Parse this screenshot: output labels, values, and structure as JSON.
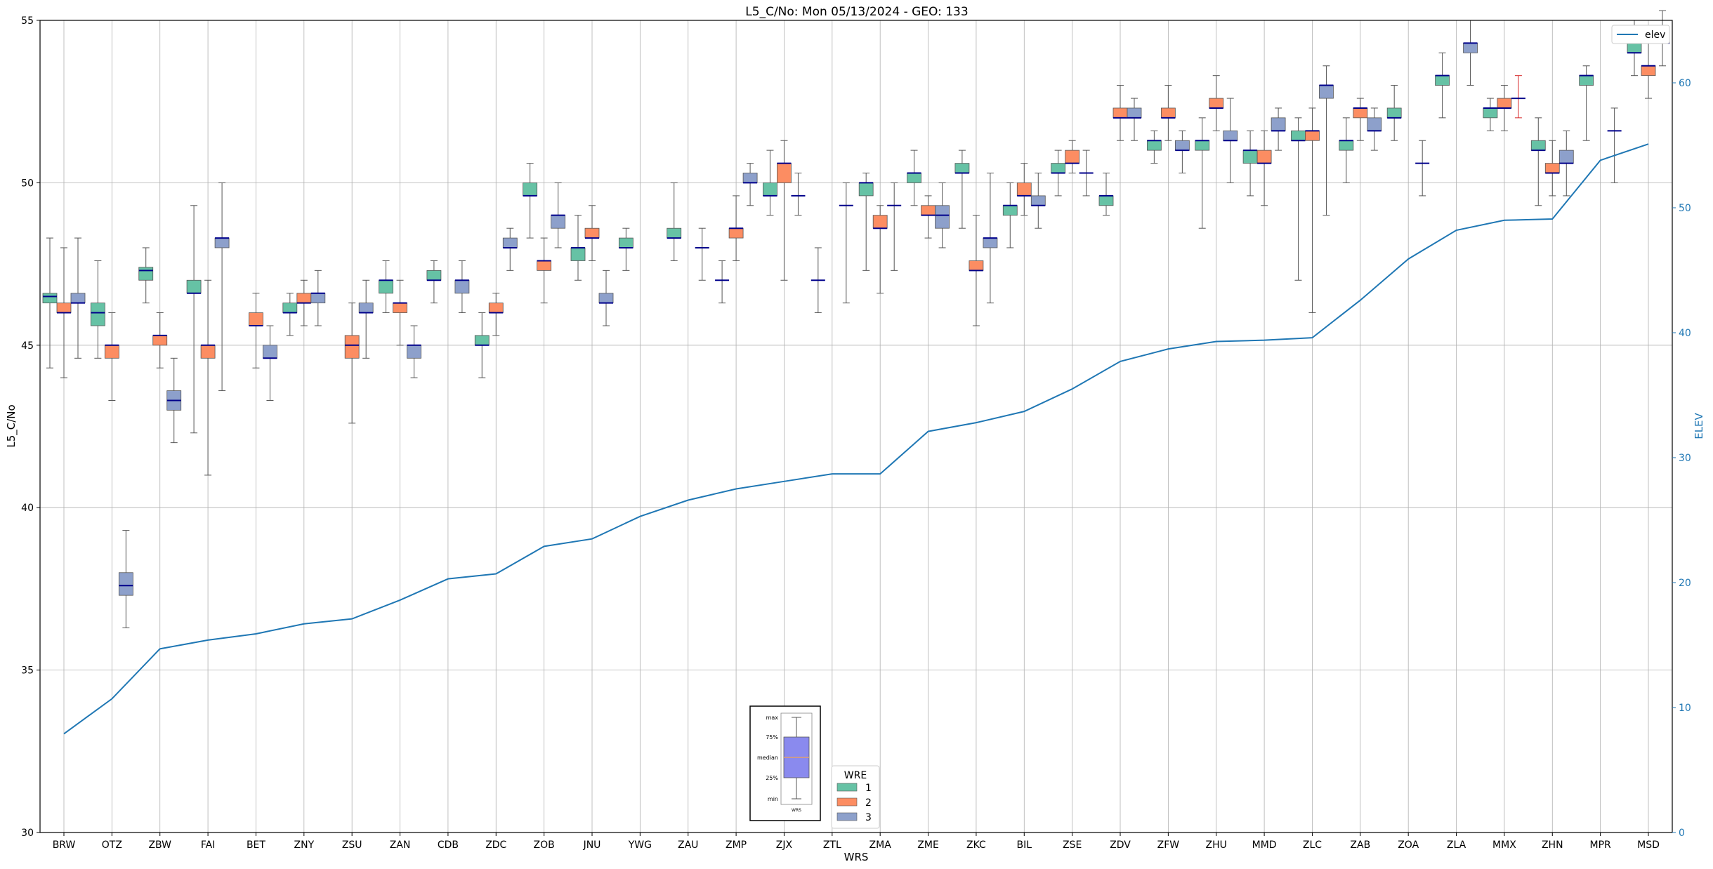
{
  "chart_data": {
    "type": "box",
    "title": "L5_C/No: Mon 05/13/2024 - GEO: 133",
    "xlabel": "WRS",
    "ylabel": "L5_C/No",
    "y2label": "ELEV",
    "ylim": [
      30,
      55
    ],
    "yticks": [
      30,
      35,
      40,
      45,
      50,
      55
    ],
    "y2lim": [
      0,
      65
    ],
    "y2ticks": [
      0,
      10,
      20,
      30,
      40,
      50,
      60
    ],
    "grid": true,
    "categories": [
      "BRW",
      "OTZ",
      "ZBW",
      "FAI",
      "BET",
      "ZNY",
      "ZSU",
      "ZAN",
      "CDB",
      "ZDC",
      "ZOB",
      "JNU",
      "YWG",
      "ZAU",
      "ZMP",
      "ZJX",
      "ZTL",
      "ZMA",
      "ZME",
      "ZKC",
      "BIL",
      "ZSE",
      "ZDV",
      "ZFW",
      "ZHU",
      "MMD",
      "ZLC",
      "ZAB",
      "ZOA",
      "ZLA",
      "MMX",
      "ZHN",
      "MPR",
      "MSD"
    ],
    "series": [
      {
        "name": "1",
        "color": "#66c2a5",
        "boxes": [
          {
            "wrs": "BRW",
            "min": 44.3,
            "q1": 46.3,
            "median": 46.5,
            "q3": 46.6,
            "max": 48.3
          },
          {
            "wrs": "OTZ",
            "min": 44.6,
            "q1": 45.6,
            "median": 46.0,
            "q3": 46.3,
            "max": 47.6
          },
          {
            "wrs": "ZBW",
            "min": 46.3,
            "q1": 47.0,
            "median": 47.3,
            "q3": 47.4,
            "max": 48.0
          },
          {
            "wrs": "FAI",
            "min": 42.3,
            "q1": 46.6,
            "median": 46.6,
            "q3": 47.0,
            "max": 49.3
          },
          {
            "wrs": "ZNY",
            "min": 45.3,
            "q1": 46.0,
            "median": 46.0,
            "q3": 46.3,
            "max": 46.6
          },
          {
            "wrs": "ZAN",
            "min": 46.0,
            "q1": 46.6,
            "median": 47.0,
            "q3": 47.0,
            "max": 47.6
          },
          {
            "wrs": "CDB",
            "min": 46.3,
            "q1": 47.0,
            "median": 47.0,
            "q3": 47.3,
            "max": 47.6
          },
          {
            "wrs": "ZDC",
            "min": 44.0,
            "q1": 45.0,
            "median": 45.0,
            "q3": 45.3,
            "max": 46.0
          },
          {
            "wrs": "ZOB",
            "min": 48.3,
            "q1": 49.6,
            "median": 49.6,
            "q3": 50.0,
            "max": 50.6
          },
          {
            "wrs": "JNU",
            "min": 47.0,
            "q1": 47.6,
            "median": 48.0,
            "q3": 48.0,
            "max": 49.0
          },
          {
            "wrs": "YWG",
            "min": 47.3,
            "q1": 48.0,
            "median": 48.0,
            "q3": 48.3,
            "max": 48.6
          },
          {
            "wrs": "ZAU",
            "min": 47.6,
            "q1": 48.3,
            "median": 48.3,
            "q3": 48.6,
            "max": 50.0
          },
          {
            "wrs": "ZMP",
            "min": 46.3,
            "q1": 47.0,
            "median": 47.0,
            "q3": 47.0,
            "max": 47.6
          },
          {
            "wrs": "ZJX",
            "min": 49.0,
            "q1": 49.6,
            "median": 49.6,
            "q3": 50.0,
            "max": 51.0
          },
          {
            "wrs": "ZTL",
            "min": 46.0,
            "q1": 47.0,
            "median": 47.0,
            "q3": 47.0,
            "max": 48.0
          },
          {
            "wrs": "ZMA",
            "min": 47.3,
            "q1": 49.6,
            "median": 50.0,
            "q3": 50.0,
            "max": 50.3
          },
          {
            "wrs": "ZME",
            "min": 49.3,
            "q1": 50.0,
            "median": 50.3,
            "q3": 50.3,
            "max": 51.0
          },
          {
            "wrs": "ZKC",
            "min": 48.6,
            "q1": 50.3,
            "median": 50.3,
            "q3": 50.6,
            "max": 51.0
          },
          {
            "wrs": "BIL",
            "min": 48.0,
            "q1": 49.0,
            "median": 49.3,
            "q3": 49.3,
            "max": 50.0
          },
          {
            "wrs": "ZSE",
            "min": 49.6,
            "q1": 50.3,
            "median": 50.3,
            "q3": 50.6,
            "max": 51.0
          },
          {
            "wrs": "ZDV",
            "min": 49.0,
            "q1": 49.3,
            "median": 49.6,
            "q3": 49.6,
            "max": 50.3
          },
          {
            "wrs": "ZFW",
            "min": 50.6,
            "q1": 51.0,
            "median": 51.3,
            "q3": 51.3,
            "max": 51.6
          },
          {
            "wrs": "ZHU",
            "min": 48.6,
            "q1": 51.0,
            "median": 51.3,
            "q3": 51.3,
            "max": 52.0
          },
          {
            "wrs": "MMD",
            "min": 49.6,
            "q1": 50.6,
            "median": 51.0,
            "q3": 51.0,
            "max": 51.6
          },
          {
            "wrs": "ZLC",
            "min": 47.0,
            "q1": 51.3,
            "median": 51.3,
            "q3": 51.6,
            "max": 52.0
          },
          {
            "wrs": "ZAB",
            "min": 50.0,
            "q1": 51.0,
            "median": 51.3,
            "q3": 51.3,
            "max": 52.0
          },
          {
            "wrs": "ZOA",
            "min": 51.3,
            "q1": 52.0,
            "median": 52.0,
            "q3": 52.3,
            "max": 53.0
          },
          {
            "wrs": "ZLA",
            "min": 52.0,
            "q1": 53.0,
            "median": 53.3,
            "q3": 53.3,
            "max": 54.0
          },
          {
            "wrs": "MMX",
            "min": 51.6,
            "q1": 52.0,
            "median": 52.3,
            "q3": 52.3,
            "max": 52.6
          },
          {
            "wrs": "ZHN",
            "min": 49.3,
            "q1": 51.0,
            "median": 51.0,
            "q3": 51.3,
            "max": 52.0
          },
          {
            "wrs": "MPR",
            "min": 51.3,
            "q1": 53.0,
            "median": 53.3,
            "q3": 53.3,
            "max": 53.6
          },
          {
            "wrs": "MSD",
            "min": 53.3,
            "q1": 54.0,
            "median": 54.0,
            "q3": 54.3,
            "max": 55.0
          }
        ]
      },
      {
        "name": "2",
        "color": "#fc8d62",
        "boxes": [
          {
            "wrs": "BRW",
            "min": 44.0,
            "q1": 46.0,
            "median": 46.0,
            "q3": 46.3,
            "max": 48.0
          },
          {
            "wrs": "OTZ",
            "min": 43.3,
            "q1": 44.6,
            "median": 45.0,
            "q3": 45.0,
            "max": 46.0
          },
          {
            "wrs": "ZBW",
            "min": 44.3,
            "q1": 45.0,
            "median": 45.3,
            "q3": 45.3,
            "max": 46.0
          },
          {
            "wrs": "FAI",
            "min": 41.0,
            "q1": 44.6,
            "median": 45.0,
            "q3": 45.0,
            "max": 47.0
          },
          {
            "wrs": "BET",
            "min": 44.3,
            "q1": 45.6,
            "median": 45.6,
            "q3": 46.0,
            "max": 46.6
          },
          {
            "wrs": "ZNY",
            "min": 45.6,
            "q1": 46.3,
            "median": 46.3,
            "q3": 46.6,
            "max": 47.0
          },
          {
            "wrs": "ZSU",
            "min": 42.6,
            "q1": 44.6,
            "median": 45.0,
            "q3": 45.3,
            "max": 46.3
          },
          {
            "wrs": "ZAN",
            "min": 45.0,
            "q1": 46.0,
            "median": 46.3,
            "q3": 46.3,
            "max": 47.0
          },
          {
            "wrs": "ZDC",
            "min": 45.3,
            "q1": 46.0,
            "median": 46.0,
            "q3": 46.3,
            "max": 46.6
          },
          {
            "wrs": "ZOB",
            "min": 46.3,
            "q1": 47.3,
            "median": 47.6,
            "q3": 47.6,
            "max": 48.3
          },
          {
            "wrs": "JNU",
            "min": 47.6,
            "q1": 48.3,
            "median": 48.3,
            "q3": 48.6,
            "max": 49.3
          },
          {
            "wrs": "ZMP",
            "min": 47.6,
            "q1": 48.3,
            "median": 48.6,
            "q3": 48.6,
            "max": 49.6
          },
          {
            "wrs": "ZJX",
            "min": 47.0,
            "q1": 50.0,
            "median": 50.6,
            "q3": 50.6,
            "max": 51.3
          },
          {
            "wrs": "ZMA",
            "min": 46.6,
            "q1": 48.6,
            "median": 48.6,
            "q3": 49.0,
            "max": 49.3
          },
          {
            "wrs": "ZME",
            "min": 48.3,
            "q1": 49.0,
            "median": 49.0,
            "q3": 49.3,
            "max": 49.6
          },
          {
            "wrs": "ZKC",
            "min": 45.6,
            "q1": 47.3,
            "median": 47.3,
            "q3": 47.6,
            "max": 49.0
          },
          {
            "wrs": "BIL",
            "min": 49.0,
            "q1": 49.6,
            "median": 49.6,
            "q3": 50.0,
            "max": 50.6
          },
          {
            "wrs": "ZSE",
            "min": 50.3,
            "q1": 50.6,
            "median": 50.6,
            "q3": 51.0,
            "max": 51.3
          },
          {
            "wrs": "ZDV",
            "min": 51.3,
            "q1": 52.0,
            "median": 52.0,
            "q3": 52.3,
            "max": 53.0
          },
          {
            "wrs": "ZFW",
            "min": 51.3,
            "q1": 52.0,
            "median": 52.0,
            "q3": 52.3,
            "max": 53.0
          },
          {
            "wrs": "ZHU",
            "min": 51.6,
            "q1": 52.3,
            "median": 52.3,
            "q3": 52.6,
            "max": 53.3
          },
          {
            "wrs": "MMD",
            "min": 49.3,
            "q1": 50.6,
            "median": 50.6,
            "q3": 51.0,
            "max": 51.6
          },
          {
            "wrs": "ZLC",
            "min": 46.0,
            "q1": 51.3,
            "median": 51.6,
            "q3": 51.6,
            "max": 52.3
          },
          {
            "wrs": "ZAB",
            "min": 51.3,
            "q1": 52.0,
            "median": 52.3,
            "q3": 52.3,
            "max": 52.6
          },
          {
            "wrs": "MMX",
            "min": 51.6,
            "q1": 52.3,
            "median": 52.3,
            "q3": 52.6,
            "max": 53.0
          },
          {
            "wrs": "ZHN",
            "min": 49.6,
            "q1": 50.3,
            "median": 50.3,
            "q3": 50.6,
            "max": 51.3
          },
          {
            "wrs": "MSD",
            "min": 52.6,
            "q1": 53.3,
            "median": 53.6,
            "q3": 53.6,
            "max": 54.3
          }
        ]
      },
      {
        "name": "3",
        "color": "#8da0cb",
        "boxes": [
          {
            "wrs": "BRW",
            "min": 44.6,
            "q1": 46.3,
            "median": 46.3,
            "q3": 46.6,
            "max": 48.3
          },
          {
            "wrs": "OTZ",
            "min": 36.3,
            "q1": 37.3,
            "median": 37.6,
            "q3": 38.0,
            "max": 39.3
          },
          {
            "wrs": "ZBW",
            "min": 42.0,
            "q1": 43.0,
            "median": 43.3,
            "q3": 43.6,
            "max": 44.6
          },
          {
            "wrs": "FAI",
            "min": 43.6,
            "q1": 48.0,
            "median": 48.3,
            "q3": 48.3,
            "max": 50.0
          },
          {
            "wrs": "BET",
            "min": 43.3,
            "q1": 44.6,
            "median": 44.6,
            "q3": 45.0,
            "max": 45.6
          },
          {
            "wrs": "ZNY",
            "min": 45.6,
            "q1": 46.3,
            "median": 46.6,
            "q3": 46.6,
            "max": 47.3
          },
          {
            "wrs": "ZSU",
            "min": 44.6,
            "q1": 46.0,
            "median": 46.0,
            "q3": 46.3,
            "max": 47.0
          },
          {
            "wrs": "ZAN",
            "min": 44.0,
            "q1": 44.6,
            "median": 45.0,
            "q3": 45.0,
            "max": 45.6
          },
          {
            "wrs": "CDB",
            "min": 46.0,
            "q1": 46.6,
            "median": 47.0,
            "q3": 47.0,
            "max": 47.6
          },
          {
            "wrs": "ZDC",
            "min": 47.3,
            "q1": 48.0,
            "median": 48.0,
            "q3": 48.3,
            "max": 48.6
          },
          {
            "wrs": "ZOB",
            "min": 48.0,
            "q1": 48.6,
            "median": 49.0,
            "q3": 49.0,
            "max": 50.0
          },
          {
            "wrs": "JNU",
            "min": 45.6,
            "q1": 46.3,
            "median": 46.3,
            "q3": 46.6,
            "max": 47.3
          },
          {
            "wrs": "ZAU",
            "min": 47.0,
            "q1": 48.0,
            "median": 48.0,
            "q3": 48.0,
            "max": 48.6
          },
          {
            "wrs": "ZMP",
            "min": 49.3,
            "q1": 50.0,
            "median": 50.0,
            "q3": 50.3,
            "max": 50.6
          },
          {
            "wrs": "ZJX",
            "min": 49.0,
            "q1": 49.6,
            "median": 49.6,
            "q3": 49.6,
            "max": 50.3
          },
          {
            "wrs": "ZTL",
            "min": 46.3,
            "q1": 49.3,
            "median": 49.3,
            "q3": 49.3,
            "max": 50.0
          },
          {
            "wrs": "ZMA",
            "min": 47.3,
            "q1": 49.3,
            "median": 49.3,
            "q3": 49.3,
            "max": 50.0
          },
          {
            "wrs": "ZME",
            "min": 48.0,
            "q1": 48.6,
            "median": 49.0,
            "q3": 49.3,
            "max": 50.0
          },
          {
            "wrs": "ZKC",
            "min": 46.3,
            "q1": 48.0,
            "median": 48.3,
            "q3": 48.3,
            "max": 50.3
          },
          {
            "wrs": "BIL",
            "min": 48.6,
            "q1": 49.3,
            "median": 49.3,
            "q3": 49.6,
            "max": 50.3
          },
          {
            "wrs": "ZSE",
            "min": 49.6,
            "q1": 50.3,
            "median": 50.3,
            "q3": 50.3,
            "max": 51.0
          },
          {
            "wrs": "ZDV",
            "min": 51.3,
            "q1": 52.0,
            "median": 52.0,
            "q3": 52.3,
            "max": 52.6
          },
          {
            "wrs": "ZFW",
            "min": 50.3,
            "q1": 51.0,
            "median": 51.0,
            "q3": 51.3,
            "max": 51.6
          },
          {
            "wrs": "ZHU",
            "min": 50.0,
            "q1": 51.3,
            "median": 51.3,
            "q3": 51.6,
            "max": 52.6
          },
          {
            "wrs": "MMD",
            "min": 51.0,
            "q1": 51.6,
            "median": 51.6,
            "q3": 52.0,
            "max": 52.3
          },
          {
            "wrs": "ZLC",
            "min": 49.0,
            "q1": 52.6,
            "median": 53.0,
            "q3": 53.0,
            "max": 53.6
          },
          {
            "wrs": "ZAB",
            "min": 51.0,
            "q1": 51.6,
            "median": 51.6,
            "q3": 52.0,
            "max": 52.3
          },
          {
            "wrs": "ZOA",
            "min": 49.6,
            "q1": 50.6,
            "median": 50.6,
            "q3": 50.6,
            "max": 51.3
          },
          {
            "wrs": "ZLA",
            "min": 53.0,
            "q1": 54.0,
            "median": 54.3,
            "q3": 54.3,
            "max": 55.0
          },
          {
            "wrs": "MMX",
            "min": 52.0,
            "q1": 52.6,
            "median": 52.6,
            "q3": 52.6,
            "max": 53.3,
            "whisker_color": "#d62728"
          },
          {
            "wrs": "ZHN",
            "min": 49.6,
            "q1": 50.6,
            "median": 50.6,
            "q3": 51.0,
            "max": 51.6
          },
          {
            "wrs": "MPR",
            "min": 50.0,
            "q1": 51.6,
            "median": 51.6,
            "q3": 51.6,
            "max": 52.3
          },
          {
            "wrs": "MSD",
            "min": 53.6,
            "q1": 54.3,
            "median": 54.3,
            "q3": 54.6,
            "max": 55.3
          }
        ]
      }
    ],
    "elev": {
      "name": "elev",
      "color": "#1f77b4",
      "values": [
        7.9,
        10.7,
        14.7,
        15.4,
        15.9,
        16.7,
        17.1,
        18.6,
        20.3,
        20.7,
        22.9,
        23.5,
        25.3,
        26.6,
        27.5,
        28.1,
        28.7,
        28.7,
        32.1,
        32.8,
        33.7,
        35.5,
        37.7,
        38.7,
        39.3,
        39.4,
        39.6,
        42.6,
        45.9,
        48.2,
        49.0,
        49.1,
        53.8,
        55.1
      ]
    },
    "legend": {
      "title": "WRE",
      "position": "lower-center",
      "entries": [
        "1",
        "2",
        "3"
      ]
    },
    "elev_legend_position": "upper-right",
    "key_box": {
      "labels": [
        "max",
        "75%",
        "median",
        "25%",
        "min"
      ],
      "xlabel": "WRS",
      "color": "#8a8aee"
    }
  }
}
